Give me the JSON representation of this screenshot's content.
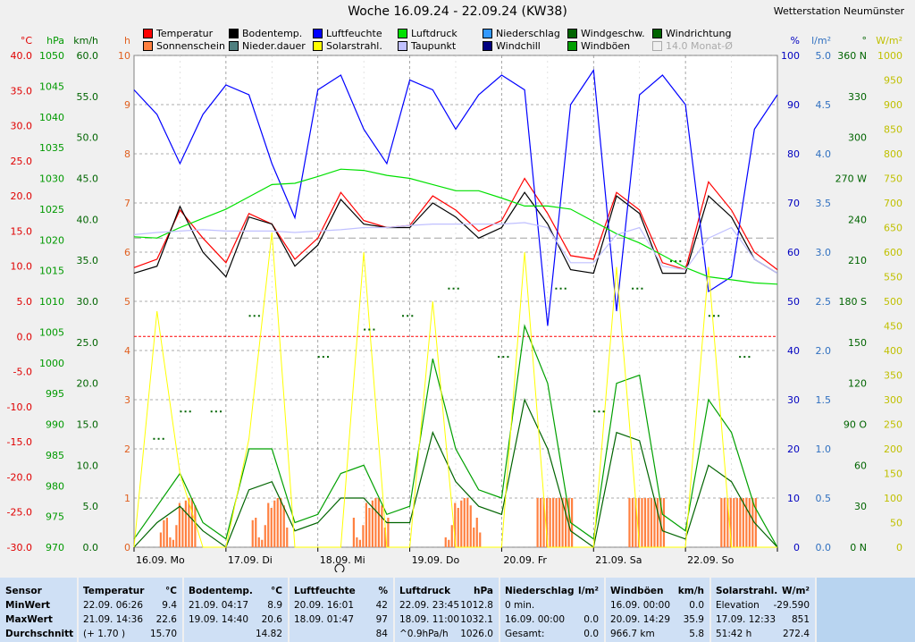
{
  "title": "Woche 16.09.24 - 22.09.24 (KW38)",
  "station": "Wetterstation Neumünster",
  "legend": [
    {
      "label": "Temperatur",
      "color": "#ff0000"
    },
    {
      "label": "Bodentemp.",
      "color": "#000000"
    },
    {
      "label": "Luftfeuchte",
      "color": "#0000ff"
    },
    {
      "label": "Luftdruck",
      "color": "#00e000"
    },
    {
      "label": "Niederschlag",
      "color": "#3399ff"
    },
    {
      "label": "Windgeschw.",
      "color": "#006400"
    },
    {
      "label": "Windrichtung",
      "color": "#006400"
    },
    {
      "label": "Sonnenschein",
      "color": "#ff8040"
    },
    {
      "label": "Nieder.dauer",
      "color": "#508080"
    },
    {
      "label": "Solarstrahl.",
      "color": "#ffff00"
    },
    {
      "label": "Taupunkt",
      "color": "#c0c0ff"
    },
    {
      "label": "Windchill",
      "color": "#000080"
    },
    {
      "label": "Windböen",
      "color": "#00a000"
    },
    {
      "label": "14.0 Monat-Ø",
      "color": "#f0f0f0"
    }
  ],
  "axis_units": {
    "temp": "°C",
    "hpa": "hPa",
    "kmh": "km/h",
    "h": "h",
    "pct": "%",
    "lm2": "l/m²",
    "deg": "°",
    "wm2": "W/m²"
  },
  "axis_ticks": {
    "temp": [
      "40.0",
      "35.0",
      "30.0",
      "25.0",
      "20.0",
      "15.0",
      "10.0",
      "5.0",
      "0.0",
      "-5.0",
      "-10.0",
      "-15.0",
      "-20.0",
      "-25.0",
      "-30.0"
    ],
    "hpa": [
      "1050",
      "1045",
      "1040",
      "1035",
      "1030",
      "1025",
      "1020",
      "1015",
      "1010",
      "1005",
      "1000",
      "995",
      "990",
      "985",
      "980",
      "975",
      "970"
    ],
    "kmh": [
      "60.0",
      "55.0",
      "50.0",
      "45.0",
      "40.0",
      "35.0",
      "30.0",
      "25.0",
      "20.0",
      "15.0",
      "10.0",
      "5.0",
      "0.0"
    ],
    "h": [
      "10",
      "9",
      "8",
      "7",
      "6",
      "5",
      "4",
      "3",
      "2",
      "1",
      "0"
    ],
    "pct": [
      "100",
      "90",
      "80",
      "70",
      "60",
      "50",
      "40",
      "30",
      "20",
      "10",
      "0"
    ],
    "lm2": [
      "5.0",
      "4.5",
      "4.0",
      "3.5",
      "3.0",
      "2.5",
      "2.0",
      "1.5",
      "1.0",
      "0.5",
      "0.0"
    ],
    "deg": [
      "360 N",
      "330",
      "300",
      "270 W",
      "240",
      "210",
      "180 S",
      "150",
      "120",
      "90 O",
      "60",
      "30",
      "0 N"
    ],
    "wm2": [
      "1000",
      "950",
      "900",
      "850",
      "800",
      "750",
      "700",
      "650",
      "600",
      "550",
      "500",
      "450",
      "400",
      "350",
      "300",
      "250",
      "200",
      "150",
      "100",
      "50",
      "0"
    ]
  },
  "chart_data": {
    "type": "line",
    "title": "Woche 16.09.24 - 22.09.24 (KW38)",
    "x_labels": [
      "16.09.  Mo",
      "17.09.  Di",
      "18.09.  Mi",
      "19.09.  Do",
      "20.09.  Fr",
      "21.09.  Sa",
      "22.09.  So"
    ],
    "x_hours": [
      0,
      6,
      12,
      18,
      24,
      30,
      36,
      42,
      48,
      54,
      60,
      66,
      72,
      78,
      84,
      90,
      96,
      102,
      108,
      114,
      120,
      126,
      132,
      138,
      144,
      150,
      156,
      162,
      168
    ],
    "series": [
      {
        "name": "Temperatur",
        "unit": "°C",
        "color": "#ff0000",
        "values": [
          9.8,
          11.0,
          18.0,
          14.0,
          10.5,
          17.5,
          16.0,
          11.0,
          14.0,
          20.5,
          16.5,
          15.5,
          15.8,
          20.0,
          18.0,
          15.0,
          16.5,
          22.5,
          17.5,
          11.5,
          11.0,
          20.5,
          18.0,
          10.5,
          9.5,
          22.0,
          18.0,
          12.0,
          9.5
        ]
      },
      {
        "name": "Bodentemp.",
        "unit": "°C",
        "color": "#000000",
        "values": [
          9.0,
          10.0,
          18.5,
          12.0,
          8.5,
          17.0,
          16.0,
          10.0,
          13.0,
          19.5,
          16.0,
          15.5,
          15.5,
          19.0,
          17.0,
          14.0,
          15.5,
          20.5,
          16.0,
          9.5,
          9.0,
          20.0,
          17.5,
          9.0,
          9.0,
          20.0,
          17.0,
          11.0,
          9.0
        ]
      },
      {
        "name": "Luftfeuchte",
        "unit": "%",
        "color": "#0000ff",
        "values": [
          93,
          88,
          78,
          88,
          94,
          92,
          78,
          67,
          93,
          96,
          85,
          78,
          95,
          93,
          85,
          92,
          96,
          93,
          45,
          90,
          97,
          48,
          92,
          96,
          90,
          52,
          55,
          85,
          92
        ]
      },
      {
        "name": "Luftdruck",
        "unit": "hPa",
        "color": "#00e000",
        "values": [
          1020.5,
          1020.3,
          1022.0,
          1023.5,
          1025.0,
          1027.0,
          1029.0,
          1029.2,
          1030.3,
          1031.5,
          1031.3,
          1030.5,
          1030.0,
          1029.0,
          1028.0,
          1028.0,
          1026.8,
          1025.5,
          1025.5,
          1025.0,
          1023.0,
          1021.0,
          1019.5,
          1017.5,
          1015.5,
          1014.0,
          1013.5,
          1013.0,
          1012.8
        ]
      },
      {
        "name": "Windböen",
        "unit": "km/h",
        "color": "#00a000",
        "values": [
          1,
          5,
          9,
          3,
          1,
          12,
          12,
          3,
          4,
          9,
          10,
          4,
          5,
          23,
          12,
          7,
          6,
          27,
          20,
          3,
          1,
          20,
          21,
          4,
          2,
          18,
          14,
          5,
          0
        ]
      },
      {
        "name": "Windgeschw.",
        "unit": "km/h",
        "color": "#006400",
        "values": [
          0,
          3,
          5,
          2,
          0,
          7,
          8,
          2,
          3,
          6,
          6,
          3,
          3,
          14,
          8,
          5,
          4,
          18,
          12,
          2,
          0,
          14,
          13,
          2,
          1,
          10,
          8,
          3,
          0
        ]
      },
      {
        "name": "Solarstrahl.",
        "unit": "W/m²",
        "color": "#ffff00",
        "values": [
          0,
          480,
          150,
          0,
          0,
          220,
          640,
          0,
          0,
          0,
          600,
          0,
          0,
          500,
          0,
          0,
          0,
          600,
          0,
          0,
          0,
          570,
          0,
          0,
          0,
          570,
          0,
          0,
          0
        ]
      },
      {
        "name": "Taupunkt",
        "unit": "°C",
        "color": "#c0c0ff",
        "values": [
          14.5,
          14.8,
          15.0,
          15.2,
          15.0,
          15.0,
          15.0,
          14.8,
          15.0,
          15.2,
          15.5,
          15.5,
          15.8,
          16.0,
          16.0,
          16.0,
          16.0,
          16.2,
          15.5,
          10.5,
          10.5,
          14.5,
          15.5,
          10.0,
          9.5,
          14.0,
          15.5,
          11.0,
          9.0
        ]
      }
    ],
    "ylim_temp": [
      -30,
      40
    ],
    "ylim_hpa": [
      970,
      1050
    ],
    "ylim_kmh": [
      0,
      60
    ],
    "ylim_pct": [
      0,
      100
    ],
    "ylim_wm2": [
      0,
      1000
    ],
    "monat_avg_temp": 14.0
  },
  "table": {
    "row_labels": [
      "Sensor",
      "MinWert",
      "MaxWert",
      "Durchschnitt"
    ],
    "columns": [
      {
        "name": "Temperatur",
        "unit": "°C",
        "rows": [
          [
            "22.09.  06:26",
            "9.4"
          ],
          [
            "21.09.  14:36",
            "22.6"
          ],
          [
            "(+ 1.70 )",
            "15.70"
          ]
        ]
      },
      {
        "name": "Bodentemp.",
        "unit": "°C",
        "rows": [
          [
            "21.09.  04:17",
            "8.9"
          ],
          [
            "19.09.  14:40",
            "20.6"
          ],
          [
            "",
            "14.82"
          ]
        ]
      },
      {
        "name": "Luftfeuchte",
        "unit": "%",
        "rows": [
          [
            "20.09.  16:01",
            "42"
          ],
          [
            "18.09.  01:47",
            "97"
          ],
          [
            "",
            "84"
          ]
        ]
      },
      {
        "name": "Luftdruck",
        "unit": "hPa",
        "rows": [
          [
            "22.09.  23:45",
            "1012.8"
          ],
          [
            "18.09.  11:00",
            "1032.1"
          ],
          [
            "^0.9hPa/h",
            "1026.0"
          ]
        ]
      },
      {
        "name": "Niederschlag",
        "unit": "l/m²",
        "rows": [
          [
            "0 min.",
            ""
          ],
          [
            "16.09.  00:00",
            "0.0"
          ],
          [
            "Gesamt:",
            "0.0"
          ]
        ]
      },
      {
        "name": "Windböen",
        "unit": "km/h",
        "rows": [
          [
            "16.09.  00:00",
            "0.0"
          ],
          [
            "20.09.  14:29",
            "35.9"
          ],
          [
            "966.7 km",
            "5.8"
          ]
        ]
      },
      {
        "name": "Solarstrahl.",
        "unit": "W/m²",
        "rows": [
          [
            "Elevation",
            "-29.590"
          ],
          [
            "17.09.  12:33",
            "851"
          ],
          [
            "51:42 h",
            "272.4"
          ]
        ]
      }
    ]
  }
}
